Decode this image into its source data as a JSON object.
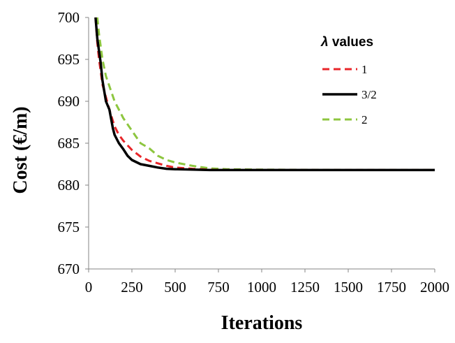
{
  "chart_data": {
    "type": "line",
    "title": "",
    "xlabel": "Iterations",
    "ylabel": "Cost (€/m)",
    "xlim": [
      0,
      2000
    ],
    "ylim": [
      670,
      700
    ],
    "xticks": [
      0,
      250,
      500,
      750,
      1000,
      1250,
      1500,
      1750,
      2000
    ],
    "yticks": [
      670,
      675,
      680,
      685,
      690,
      695,
      700
    ],
    "xtick_labels": [
      "0",
      "250",
      "500",
      "750",
      "1000",
      "1250",
      "1500",
      "1750",
      "2000"
    ],
    "ytick_labels": [
      "670",
      "675",
      "680",
      "685",
      "690",
      "695",
      "700"
    ],
    "grid": false,
    "legend": {
      "title_symbol": "λ",
      "title_text": " values",
      "placement": "top-right"
    },
    "series": [
      {
        "name": "1",
        "color": "#e8262a",
        "style": "dashed",
        "x": [
          40,
          50,
          60,
          70,
          80,
          100,
          120,
          150,
          175,
          200,
          250,
          300,
          350,
          400,
          450,
          500,
          600,
          700,
          800,
          1000,
          1500,
          2000
        ],
        "y": [
          700.0,
          697.0,
          695.0,
          693.5,
          692.0,
          690.5,
          689.0,
          687.0,
          686.0,
          685.3,
          684.2,
          683.4,
          682.9,
          682.6,
          682.3,
          682.1,
          681.95,
          681.85,
          681.8,
          681.8,
          681.8,
          681.8
        ]
      },
      {
        "name": "3/2",
        "color": "#000000",
        "style": "solid",
        "x": [
          40,
          50,
          60,
          70,
          80,
          100,
          120,
          140,
          150,
          175,
          200,
          225,
          250,
          300,
          350,
          400,
          450,
          500,
          600,
          700,
          800,
          1000,
          1500,
          2000
        ],
        "y": [
          700.0,
          697.5,
          696.0,
          694.5,
          692.5,
          690.0,
          689.0,
          686.8,
          686.0,
          685.0,
          684.3,
          683.5,
          683.0,
          682.5,
          682.3,
          682.1,
          681.95,
          681.9,
          681.85,
          681.8,
          681.8,
          681.8,
          681.8,
          681.8
        ]
      },
      {
        "name": "2",
        "color": "#8dc63f",
        "style": "dashed",
        "x": [
          50,
          60,
          70,
          80,
          100,
          125,
          150,
          175,
          200,
          250,
          300,
          350,
          400,
          450,
          500,
          550,
          600,
          700,
          800,
          1000,
          1500,
          2000
        ],
        "y": [
          700.0,
          698.0,
          696.5,
          695.0,
          693.0,
          691.5,
          690.0,
          689.0,
          688.0,
          686.5,
          685.0,
          684.4,
          683.5,
          683.0,
          682.7,
          682.5,
          682.3,
          682.0,
          681.9,
          681.85,
          681.8,
          681.8
        ]
      }
    ]
  }
}
